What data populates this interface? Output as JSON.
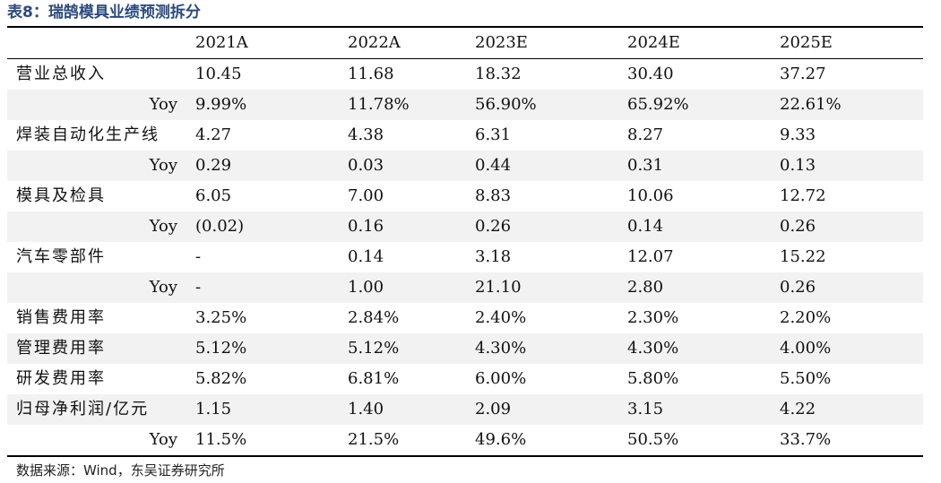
{
  "title": "表8：瑞鹄模具业绩预测拆分",
  "columns": [
    "2021A",
    "2022A",
    "2023E",
    "2024E",
    "2025E"
  ],
  "rows": [
    {
      "label": "营业总收入",
      "values": [
        "10.45",
        "11.68",
        "18.32",
        "30.40",
        "37.27"
      ],
      "indent": false,
      "shaded": false
    },
    {
      "label": "Yoy",
      "values": [
        "9.99%",
        "11.78%",
        "56.90%",
        "65.92%",
        "22.61%"
      ],
      "indent": true,
      "shaded": true
    },
    {
      "label": "焊装自动化生产线",
      "values": [
        "4.27",
        "4.38",
        "6.31",
        "8.27",
        "9.33"
      ],
      "indent": false,
      "shaded": false
    },
    {
      "label": "Yoy",
      "values": [
        "0.29",
        "0.03",
        "0.44",
        "0.31",
        "0.13"
      ],
      "indent": true,
      "shaded": true
    },
    {
      "label": "模具及检具",
      "values": [
        "6.05",
        "7.00",
        "8.83",
        "10.06",
        "12.72"
      ],
      "indent": false,
      "shaded": false
    },
    {
      "label": "Yoy",
      "values": [
        "(0.02)",
        "0.16",
        "0.26",
        "0.14",
        "0.26"
      ],
      "indent": true,
      "shaded": true
    },
    {
      "label": "汽车零部件",
      "values": [
        "-",
        "0.14",
        "3.18",
        "12.07",
        "15.22"
      ],
      "indent": false,
      "shaded": false
    },
    {
      "label": "Yoy",
      "values": [
        "-",
        "1.00",
        "21.10",
        "2.80",
        "0.26"
      ],
      "indent": true,
      "shaded": true
    },
    {
      "label": "销售费用率",
      "values": [
        "3.25%",
        "2.84%",
        "2.40%",
        "2.30%",
        "2.20%"
      ],
      "indent": false,
      "shaded": false
    },
    {
      "label": "管理费用率",
      "values": [
        "5.12%",
        "5.12%",
        "4.30%",
        "4.30%",
        "4.00%"
      ],
      "indent": false,
      "shaded": true
    },
    {
      "label": "研发费用率",
      "values": [
        "5.82%",
        "6.81%",
        "6.00%",
        "5.80%",
        "5.50%"
      ],
      "indent": false,
      "shaded": false
    },
    {
      "label": "归母净利润/亿元",
      "values": [
        "1.15",
        "1.40",
        "2.09",
        "3.15",
        "4.22"
      ],
      "indent": false,
      "shaded": true
    },
    {
      "label": "Yoy",
      "values": [
        "11.5%",
        "21.5%",
        "49.6%",
        "50.5%",
        "33.7%"
      ],
      "indent": true,
      "shaded": false
    }
  ],
  "source": "数据来源：Wind，东吴证券研究所"
}
